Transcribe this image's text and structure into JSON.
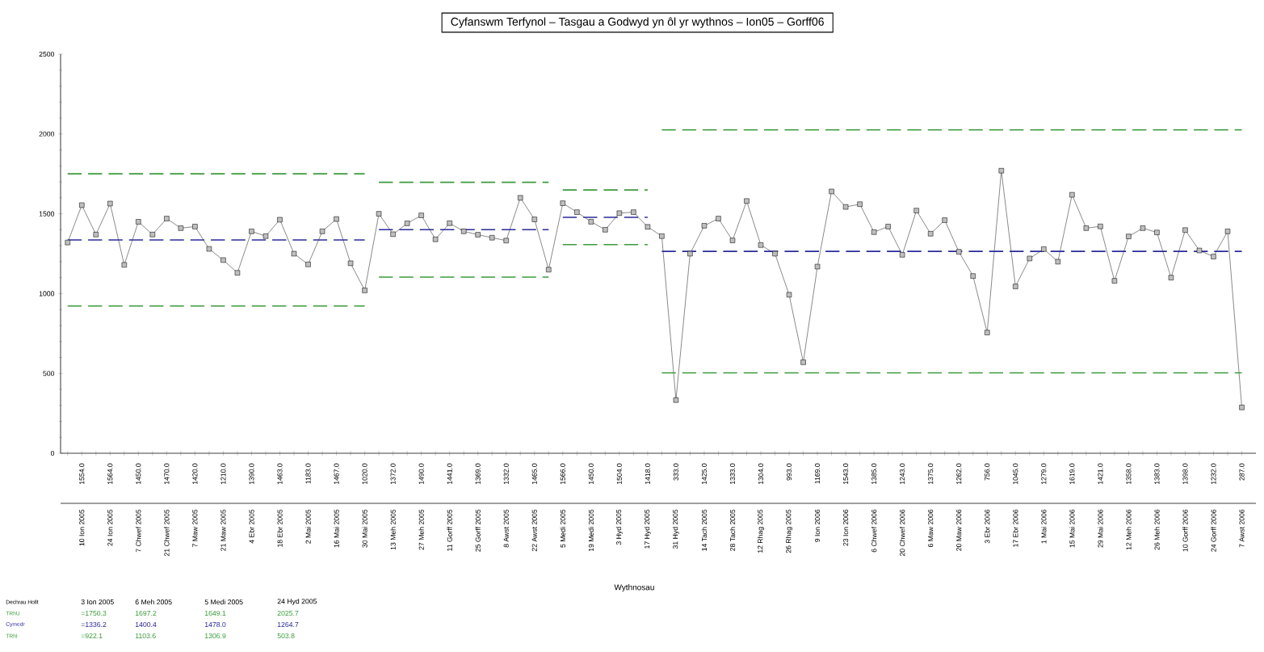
{
  "chart_data": {
    "type": "line",
    "title": "Cyfanswm Terfynol – Tasgau a Godwyd yn ôl yr wythnos – Ion05 – Gorff06",
    "xlabel": "Wythnosau",
    "categories": [
      null,
      "10 Ion 2005",
      null,
      "24 Ion 2005",
      null,
      "7 Chwef 2005",
      null,
      "21 Chwef 2005",
      null,
      "7 Maw 2005",
      null,
      "21 Maw 2005",
      null,
      "4 Ebr 2005",
      null,
      "18 Ebr 2005",
      null,
      "2 Mai 2005",
      null,
      "16 Mai 2005",
      null,
      "30 Mai 2005",
      null,
      "13 Meh 2005",
      null,
      "27 Meh 2005",
      null,
      "11 Gorff 2005",
      null,
      "25 Gorff 2005",
      null,
      "8 Awst 2005",
      null,
      "22 Awst 2005",
      null,
      "5 Medi 2005",
      null,
      "19 Medi 2005",
      null,
      "3 Hyd 2005",
      null,
      "17 Hyd 2005",
      null,
      "31 Hyd 2005",
      null,
      "14 Tach 2005",
      null,
      "28 Tach 2005",
      null,
      "12 Rhag 2005",
      null,
      "26 Rhag 2005",
      null,
      "9 Ion 2006",
      null,
      "23 Ion 2006",
      null,
      "6 Chwef 2006",
      null,
      "20 Chwef 2006",
      null,
      "6 Maw 2006",
      null,
      "20 Maw 2006",
      null,
      "3 Ebr 2006",
      null,
      "17 Ebr 2006",
      null,
      "1 Mai 2006",
      null,
      "15 Mai 2006",
      null,
      "29 Mai 2006",
      null,
      "12 Meh 2006",
      null,
      "26 Meh 2006",
      null,
      "10 Gorff 2006",
      null,
      "24 Gorff 2006",
      null,
      "7 Awst 2006"
    ],
    "series": [
      {
        "color": "#222222",
        "marker": "square",
        "line_style": "solid",
        "values": [
          1320,
          1554.0,
          1370,
          1564.0,
          1180,
          1450.0,
          1370,
          1470.0,
          1410,
          1420.0,
          1280,
          1210.0,
          1130,
          1390.0,
          1360,
          1463.0,
          1250,
          1183.0,
          1390,
          1467.0,
          1190,
          1020.0,
          1500,
          1372.0,
          1440,
          1490.0,
          1340,
          1441.0,
          1390,
          1369.0,
          1350,
          1332.0,
          1600,
          1465.0,
          1150,
          1566.0,
          1510,
          1450.0,
          1400,
          1504.0,
          1510,
          1418.0,
          1360,
          333.0,
          1250,
          1425.0,
          1470,
          1333.0,
          1580,
          1304.0,
          1250,
          993.0,
          570,
          1169.0,
          1640,
          1543.0,
          1560,
          1385.0,
          1420,
          1243.0,
          1520,
          1375.0,
          1460,
          1262.0,
          1110,
          756.0,
          1770,
          1045.0,
          1220,
          1279.0,
          1200,
          1619.0,
          1410,
          1421.0,
          1080,
          1358.0,
          1410,
          1383.0,
          1100,
          1398.0,
          1270,
          1232.0,
          1390,
          287.0
        ]
      },
      {
        "color": "#3c9a3c",
        "marker": "none",
        "line_style": "dashed",
        "values": [
          1750.3,
          1750.3,
          1750.3,
          1750.3,
          1750.3,
          1750.3,
          1750.3,
          1750.3,
          1750.3,
          1750.3,
          1750.3,
          1750.3,
          1750.3,
          1750.3,
          1750.3,
          1750.3,
          1750.3,
          1750.3,
          1750.3,
          1750.3,
          1750.3,
          1750.3,
          1697.2,
          1697.2,
          1697.2,
          1697.2,
          1697.2,
          1697.2,
          1697.2,
          1697.2,
          1697.2,
          1697.2,
          1697.2,
          1697.2,
          1697.2,
          1649.1,
          1649.1,
          1649.1,
          1649.1,
          1649.1,
          1649.1,
          1649.1,
          2025.7,
          2025.7,
          2025.7,
          2025.7,
          2025.7,
          2025.7,
          2025.7,
          2025.7,
          2025.7,
          2025.7,
          2025.7,
          2025.7,
          2025.7,
          2025.7,
          2025.7,
          2025.7,
          2025.7,
          2025.7,
          2025.7,
          2025.7,
          2025.7,
          2025.7,
          2025.7,
          2025.7,
          2025.7,
          2025.7,
          2025.7,
          2025.7,
          2025.7,
          2025.7,
          2025.7,
          2025.7,
          2025.7,
          2025.7,
          2025.7,
          2025.7,
          2025.7,
          2025.7,
          2025.7,
          2025.7,
          2025.7,
          2025.7
        ]
      },
      {
        "color": "#2b2b9a",
        "marker": "none",
        "line_style": "dashed",
        "values": [
          1336.2,
          1336.2,
          1336.2,
          1336.2,
          1336.2,
          1336.2,
          1336.2,
          1336.2,
          1336.2,
          1336.2,
          1336.2,
          1336.2,
          1336.2,
          1336.2,
          1336.2,
          1336.2,
          1336.2,
          1336.2,
          1336.2,
          1336.2,
          1336.2,
          1336.2,
          1400.4,
          1400.4,
          1400.4,
          1400.4,
          1400.4,
          1400.4,
          1400.4,
          1400.4,
          1400.4,
          1400.4,
          1400.4,
          1400.4,
          1400.4,
          1478.0,
          1478.0,
          1478.0,
          1478.0,
          1478.0,
          1478.0,
          1478.0,
          1264.7,
          1264.7,
          1264.7,
          1264.7,
          1264.7,
          1264.7,
          1264.7,
          1264.7,
          1264.7,
          1264.7,
          1264.7,
          1264.7,
          1264.7,
          1264.7,
          1264.7,
          1264.7,
          1264.7,
          1264.7,
          1264.7,
          1264.7,
          1264.7,
          1264.7,
          1264.7,
          1264.7,
          1264.7,
          1264.7,
          1264.7,
          1264.7,
          1264.7,
          1264.7,
          1264.7,
          1264.7,
          1264.7,
          1264.7,
          1264.7,
          1264.7,
          1264.7,
          1264.7,
          1264.7,
          1264.7,
          1264.7,
          1264.7
        ]
      },
      {
        "color": "#3c9a3c",
        "marker": "none",
        "line_style": "dashed",
        "values": [
          922.1,
          922.1,
          922.1,
          922.1,
          922.1,
          922.1,
          922.1,
          922.1,
          922.1,
          922.1,
          922.1,
          922.1,
          922.1,
          922.1,
          922.1,
          922.1,
          922.1,
          922.1,
          922.1,
          922.1,
          922.1,
          922.1,
          1103.6,
          1103.6,
          1103.6,
          1103.6,
          1103.6,
          1103.6,
          1103.6,
          1103.6,
          1103.6,
          1103.6,
          1103.6,
          1103.6,
          1103.6,
          1306.9,
          1306.9,
          1306.9,
          1306.9,
          1306.9,
          1306.9,
          1306.9,
          503.8,
          503.8,
          503.8,
          503.8,
          503.8,
          503.8,
          503.8,
          503.8,
          503.8,
          503.8,
          503.8,
          503.8,
          503.8,
          503.8,
          503.8,
          503.8,
          503.8,
          503.8,
          503.8,
          503.8,
          503.8,
          503.8,
          503.8,
          503.8,
          503.8,
          503.8,
          503.8,
          503.8,
          503.8,
          503.8,
          503.8,
          503.8,
          503.8,
          503.8,
          503.8,
          503.8,
          503.8,
          503.8,
          503.8,
          503.8,
          503.8,
          503.8
        ]
      }
    ],
    "annotations": [
      "1554.0",
      "1564.0",
      "1450.0",
      "1470.0",
      "1420.0",
      "1210.0",
      "1390.0",
      "1463.0",
      "1183.0",
      "1467.0",
      "1020.0",
      "1372.0",
      "1490.0",
      "1441.0",
      "1369.0",
      "1332.0",
      "1465.0",
      "1566.0",
      "1450.0",
      "1504.0",
      "1418.0",
      "333.0",
      "1425.0",
      "1333.0",
      "1304.0",
      "993.0",
      "1169.0",
      "1543.0",
      "1385.0",
      "1243.0",
      "1375.0",
      "1262.0",
      "756.0",
      "1045.0",
      "1279.0",
      "1619.0",
      "1421.0",
      "1358.0",
      "1383.0",
      "1398.0",
      "1232.0",
      "287.0",
      "Dechrau Hollt",
      "3 Ion 2005",
      "6 Meh 2005",
      "5 Medi 2005",
      "24 Hyd 2005",
      "TRhU",
      "=1750.3",
      "1697.2",
      "1649.1",
      "2025.7",
      "Cymedr",
      "=1336.2",
      "1400.4",
      "1478.0",
      "1264.7",
      "TRhI",
      "=922.1",
      "1103.6",
      "1306.9",
      "503.8"
    ],
    "ylim": [
      0,
      2500
    ],
    "yticks": [
      0,
      500,
      1000,
      1500,
      2000,
      2500
    ]
  }
}
